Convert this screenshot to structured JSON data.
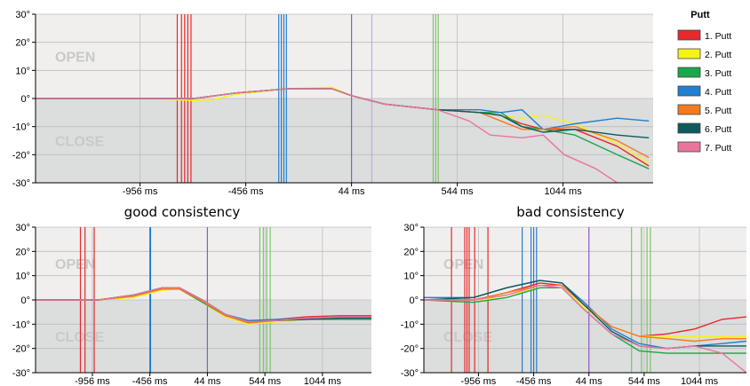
{
  "captions": {
    "left": "good consistency",
    "right": "bad consistency"
  },
  "legend": {
    "title": "Putt",
    "items": [
      {
        "label": "1. Putt",
        "color": "#e8282b"
      },
      {
        "label": "2. Putt",
        "color": "#f4f416"
      },
      {
        "label": "3. Putt",
        "color": "#1aa64a"
      },
      {
        "label": "4. Putt",
        "color": "#1f7fd0"
      },
      {
        "label": "5. Putt",
        "color": "#f47a20"
      },
      {
        "label": "6. Putt",
        "color": "#0c5a5e"
      },
      {
        "label": "7. Putt",
        "color": "#e9759f"
      }
    ]
  },
  "chart_data": [
    {
      "name": "top",
      "type": "line",
      "ylim": [
        -30,
        30
      ],
      "xlim": [
        -1450,
        1470
      ],
      "yticks": [
        30,
        20,
        10,
        0,
        -10,
        -20,
        -30
      ],
      "ytick_labels": [
        "30°",
        "20°",
        "10°",
        "0°",
        "-10°",
        "-20°",
        "-30°"
      ],
      "xticks": [
        -956,
        -456,
        44,
        544,
        1044
      ],
      "xtick_labels": [
        "-956 ms",
        "-456 ms",
        "44 ms",
        "544 ms",
        "1044 ms"
      ],
      "zones": {
        "open": "OPEN",
        "close": "CLOSE"
      },
      "markers": [
        {
          "x": -780,
          "color": "#e8282b"
        },
        {
          "x": -760,
          "color": "#e8282b"
        },
        {
          "x": -745,
          "color": "#e8282b"
        },
        {
          "x": -730,
          "color": "#e8282b"
        },
        {
          "x": -715,
          "color": "#e8282b"
        },
        {
          "x": -300,
          "color": "#1f7fd0"
        },
        {
          "x": -288,
          "color": "#1f7fd0"
        },
        {
          "x": -276,
          "color": "#1f7fd0"
        },
        {
          "x": -264,
          "color": "#1f7fd0"
        },
        {
          "x": 44,
          "color": "#8e5cc2"
        },
        {
          "x": 140,
          "color": "#c7a8e6"
        },
        {
          "x": 430,
          "color": "#7cc36a"
        },
        {
          "x": 442,
          "color": "#7cc36a"
        },
        {
          "x": 454,
          "color": "#7cc36a"
        }
      ],
      "series": [
        {
          "name": "1. Putt",
          "x": [
            -1450,
            -900,
            -700,
            -500,
            -250,
            -50,
            44,
            200,
            450,
            650,
            750,
            850,
            950,
            1100,
            1300,
            1450
          ],
          "y": [
            0,
            0,
            0,
            2,
            3.5,
            3.5,
            1,
            -2,
            -4,
            -5,
            -6,
            -9,
            -11,
            -11,
            -17,
            -24
          ]
        },
        {
          "name": "2. Putt",
          "x": [
            -1450,
            -900,
            -650,
            -500,
            -250,
            -50,
            44,
            200,
            450,
            650,
            750,
            850,
            950,
            1100,
            1300,
            1450
          ],
          "y": [
            0,
            0,
            -1,
            1.5,
            3.5,
            4,
            1,
            -2,
            -4,
            -5,
            -6,
            -7,
            -6,
            -9,
            -16,
            -23
          ]
        },
        {
          "name": "3. Putt",
          "x": [
            -1450,
            -900,
            -700,
            -500,
            -250,
            -50,
            44,
            200,
            450,
            650,
            750,
            850,
            950,
            1100,
            1300,
            1450
          ],
          "y": [
            0,
            0,
            0,
            2,
            3.5,
            3.5,
            1,
            -2,
            -4,
            -5,
            -5,
            -10,
            -11,
            -13,
            -20,
            -25
          ]
        },
        {
          "name": "4. Putt",
          "x": [
            -1450,
            -900,
            -700,
            -500,
            -250,
            -50,
            44,
            200,
            450,
            650,
            750,
            850,
            950,
            1100,
            1300,
            1450
          ],
          "y": [
            0,
            0,
            0,
            2,
            3.5,
            3.5,
            1,
            -2,
            -4,
            -4,
            -5,
            -4,
            -11,
            -9,
            -7,
            -8
          ]
        },
        {
          "name": "5. Putt",
          "x": [
            -1450,
            -900,
            -700,
            -500,
            -250,
            -50,
            44,
            200,
            450,
            650,
            750,
            850,
            950,
            1100,
            1300,
            1450
          ],
          "y": [
            0,
            0,
            0,
            2,
            3.5,
            3.5,
            1,
            -2,
            -4,
            -5,
            -8,
            -11,
            -11,
            -10,
            -15,
            -21
          ]
        },
        {
          "name": "6. Putt",
          "x": [
            -1450,
            -900,
            -700,
            -500,
            -250,
            -50,
            44,
            200,
            450,
            650,
            750,
            850,
            950,
            1100,
            1300,
            1450
          ],
          "y": [
            0,
            0,
            0,
            2,
            3.5,
            3.5,
            1,
            -2,
            -4,
            -5,
            -6,
            -10,
            -12,
            -11,
            -13,
            -14
          ]
        },
        {
          "name": "7. Putt",
          "x": [
            -1450,
            -900,
            -700,
            -500,
            -250,
            -50,
            44,
            200,
            450,
            600,
            700,
            850,
            950,
            1050,
            1200,
            1300
          ],
          "y": [
            0,
            0,
            0,
            2,
            3.5,
            3.5,
            1,
            -2,
            -4,
            -8,
            -13,
            -14,
            -13,
            -20,
            -25,
            -30
          ]
        }
      ]
    },
    {
      "name": "good",
      "type": "line",
      "ylim": [
        -30,
        30
      ],
      "xlim": [
        -1450,
        1470
      ],
      "yticks": [
        30,
        20,
        10,
        0,
        -10,
        -20,
        -30
      ],
      "ytick_labels": [
        "30°",
        "20°",
        "10°",
        "0°",
        "-10°",
        "-20°",
        "-30°"
      ],
      "xticks": [
        -956,
        -456,
        44,
        544,
        1044
      ],
      "xtick_labels": [
        "-956 ms",
        "-456 ms",
        "44 ms",
        "544 ms",
        "1044 ms"
      ],
      "zones": {
        "open": "OPEN",
        "close": "CLOSE"
      },
      "markers": [
        {
          "x": -1060,
          "color": "#e8282b"
        },
        {
          "x": -1020,
          "color": "#e8282b"
        },
        {
          "x": -940,
          "color": "#e8282b"
        },
        {
          "x": -456,
          "color": "#1f7fd0"
        },
        {
          "x": -450,
          "color": "#1f7fd0"
        },
        {
          "x": 44,
          "color": "#8e5cc2"
        },
        {
          "x": 500,
          "color": "#7cc36a"
        },
        {
          "x": 530,
          "color": "#7cc36a"
        },
        {
          "x": 560,
          "color": "#7cc36a"
        },
        {
          "x": 590,
          "color": "#7cc36a"
        }
      ],
      "series": [
        {
          "name": "1. Putt",
          "x": [
            -1450,
            -900,
            -600,
            -350,
            -200,
            0,
            200,
            400,
            650,
            900,
            1200,
            1470
          ],
          "y": [
            0,
            0,
            2,
            5,
            5,
            0,
            -6,
            -9,
            -8,
            -7,
            -6.5,
            -6.5
          ]
        },
        {
          "name": "2. Putt",
          "x": [
            -1450,
            -900,
            -600,
            -350,
            -200,
            0,
            200,
            400,
            650,
            900,
            1200,
            1470
          ],
          "y": [
            0,
            0,
            1,
            4,
            4.5,
            -1,
            -7,
            -10,
            -9,
            -8,
            -7.5,
            -7.5
          ]
        },
        {
          "name": "3. Putt",
          "x": [
            -1450,
            -900,
            -600,
            -350,
            -200,
            0,
            200,
            400,
            650,
            900,
            1200,
            1470
          ],
          "y": [
            0,
            0,
            2,
            4.5,
            4.5,
            -1,
            -6.5,
            -9,
            -8.5,
            -8,
            -8,
            -8
          ]
        },
        {
          "name": "4. Putt",
          "x": [
            -1450,
            -900,
            -600,
            -350,
            -200,
            0,
            200,
            400,
            650,
            900,
            1200,
            1470
          ],
          "y": [
            0,
            0,
            2,
            5,
            5,
            0,
            -6,
            -8.5,
            -8,
            -7.5,
            -7,
            -7
          ]
        },
        {
          "name": "5. Putt",
          "x": [
            -1450,
            -900,
            -600,
            -350,
            -200,
            0,
            200,
            400,
            650,
            900,
            1200,
            1470
          ],
          "y": [
            0,
            0,
            1.5,
            4.5,
            4.5,
            -0.5,
            -6.5,
            -9.5,
            -8.5,
            -8,
            -7.5,
            -7.5
          ]
        },
        {
          "name": "6. Putt",
          "x": [
            -1450,
            -900,
            -600,
            -350,
            -200,
            0,
            200,
            400,
            650,
            900,
            1200,
            1470
          ],
          "y": [
            0,
            0,
            2,
            5,
            5,
            0,
            -6,
            -9,
            -8.5,
            -8,
            -7.5,
            -7.5
          ]
        },
        {
          "name": "7. Putt",
          "x": [
            -1450,
            -900,
            -600,
            -350,
            -200,
            0,
            200,
            400,
            650,
            900,
            1200,
            1470
          ],
          "y": [
            0,
            0,
            2,
            5,
            5,
            0,
            -6,
            -9,
            -8.5,
            -7.5,
            -7,
            -7
          ]
        }
      ]
    },
    {
      "name": "bad",
      "type": "line",
      "ylim": [
        -30,
        30
      ],
      "xlim": [
        -1450,
        1470
      ],
      "yticks": [
        30,
        20,
        10,
        0,
        -10,
        -20,
        -30
      ],
      "ytick_labels": [
        "30°",
        "20°",
        "10°",
        "0°",
        "-10°",
        "-20°",
        "-30°"
      ],
      "xticks": [
        -956,
        -456,
        44,
        544,
        1044
      ],
      "xtick_labels": [
        "-956 ms",
        "-456 ms",
        "44 ms",
        "544 ms",
        "1044 ms"
      ],
      "zones": {
        "open": "OPEN",
        "close": "CLOSE"
      },
      "markers": [
        {
          "x": -1200,
          "color": "#e8282b"
        },
        {
          "x": -1080,
          "color": "#e8282b"
        },
        {
          "x": -1060,
          "color": "#e8282b"
        },
        {
          "x": -1040,
          "color": "#e8282b"
        },
        {
          "x": -990,
          "color": "#e8282b"
        },
        {
          "x": -870,
          "color": "#e8282b"
        },
        {
          "x": -560,
          "color": "#1f7fd0"
        },
        {
          "x": -480,
          "color": "#1f7fd0"
        },
        {
          "x": -456,
          "color": "#1f7fd0"
        },
        {
          "x": -430,
          "color": "#1f7fd0"
        },
        {
          "x": 44,
          "color": "#8e5cc2"
        },
        {
          "x": 430,
          "color": "#7cc36a"
        },
        {
          "x": 520,
          "color": "#7cc36a"
        },
        {
          "x": 570,
          "color": "#7cc36a"
        },
        {
          "x": 600,
          "color": "#7cc36a"
        }
      ],
      "series": [
        {
          "name": "1. Putt",
          "x": [
            -1450,
            -1000,
            -700,
            -400,
            -200,
            0,
            250,
            500,
            750,
            1000,
            1250,
            1470
          ],
          "y": [
            0,
            0,
            3,
            7,
            6,
            -2,
            -11,
            -15,
            -14,
            -12,
            -8,
            -7
          ]
        },
        {
          "name": "2. Putt",
          "x": [
            -1450,
            -1000,
            -700,
            -400,
            -200,
            0,
            250,
            500,
            750,
            1000,
            1250,
            1470
          ],
          "y": [
            0,
            -1,
            2,
            5,
            5,
            -3,
            -11,
            -15,
            -15,
            -15,
            -15,
            -15
          ]
        },
        {
          "name": "3. Putt",
          "x": [
            -1450,
            -1000,
            -700,
            -400,
            -200,
            0,
            250,
            500,
            750,
            1000,
            1250,
            1470
          ],
          "y": [
            0,
            -1,
            1,
            5,
            5,
            -4,
            -14,
            -21,
            -22,
            -22,
            -22,
            -22
          ]
        },
        {
          "name": "4. Putt",
          "x": [
            -1450,
            -1000,
            -700,
            -400,
            -200,
            0,
            250,
            500,
            750,
            1000,
            1250,
            1470
          ],
          "y": [
            1,
            1,
            5,
            8,
            7,
            -1,
            -12,
            -18,
            -20,
            -19,
            -18,
            -17
          ]
        },
        {
          "name": "5. Putt",
          "x": [
            -1450,
            -1000,
            -700,
            -400,
            -200,
            0,
            250,
            500,
            750,
            1000,
            1250,
            1470
          ],
          "y": [
            0,
            0,
            3,
            6,
            6,
            -2,
            -11,
            -15,
            -16,
            -17,
            -16,
            -16
          ]
        },
        {
          "name": "6. Putt",
          "x": [
            -1450,
            -1000,
            -700,
            -400,
            -200,
            0,
            250,
            500,
            750,
            1000,
            1250,
            1470
          ],
          "y": [
            0,
            1,
            5,
            8,
            7,
            -2,
            -13,
            -19,
            -20,
            -19,
            -19,
            -19
          ]
        },
        {
          "name": "7. Putt",
          "x": [
            -1450,
            -1000,
            -700,
            -400,
            -200,
            0,
            250,
            500,
            750,
            1000,
            1250,
            1470
          ],
          "y": [
            0,
            0,
            2,
            6,
            5,
            -4,
            -14,
            -19,
            -20,
            -19,
            -22,
            -30
          ]
        }
      ]
    }
  ]
}
